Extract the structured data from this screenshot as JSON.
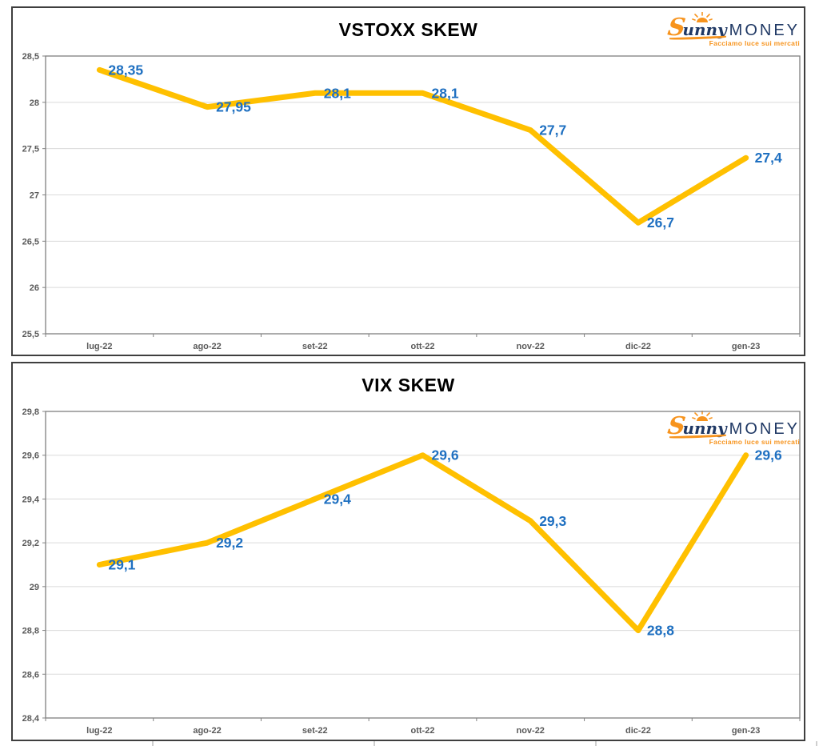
{
  "brand": {
    "script_initial": "S",
    "script_rest": "unny",
    "caps": "MONEY",
    "tagline": "Facciamo luce sui mercati",
    "orange": "#F7941E",
    "navy": "#1F3864"
  },
  "chart_data": [
    {
      "type": "line",
      "title": "VSTOXX SKEW",
      "categories": [
        "lug-22",
        "ago-22",
        "set-22",
        "ott-22",
        "nov-22",
        "dic-22",
        "gen-23"
      ],
      "values": [
        28.35,
        27.95,
        28.1,
        28.1,
        27.7,
        26.7,
        27.4
      ],
      "point_labels": [
        "28,35",
        "27,95",
        "28,1",
        "28,1",
        "27,7",
        "26,7",
        "27,4"
      ],
      "ylim": [
        25.5,
        28.5
      ],
      "ystep": 0.5,
      "ytick_labels": [
        "28,5",
        "28",
        "27,5",
        "27",
        "26,5",
        "26",
        "25,5"
      ],
      "xlabel": "",
      "ylabel": "",
      "grid": true,
      "legend": "none",
      "line_color": "#FFC000",
      "label_color": "#1F70C1",
      "grid_color": "#DADADA",
      "axis_color": "#808080"
    },
    {
      "type": "line",
      "title": "VIX SKEW",
      "categories": [
        "lug-22",
        "ago-22",
        "set-22",
        "ott-22",
        "nov-22",
        "dic-22",
        "gen-23"
      ],
      "values": [
        29.1,
        29.2,
        29.4,
        29.6,
        29.3,
        28.8,
        29.6
      ],
      "point_labels": [
        "29,1",
        "29,2",
        "29,4",
        "29,6",
        "29,3",
        "28,8",
        "29,6"
      ],
      "ylim": [
        28.4,
        29.8
      ],
      "ystep": 0.2,
      "ytick_labels": [
        "29,8",
        "29,6",
        "29,4",
        "29,2",
        "29",
        "28,8",
        "28,6",
        "28,4"
      ],
      "xlabel": "",
      "ylabel": "",
      "grid": true,
      "legend": "none",
      "line_color": "#FFC000",
      "label_color": "#1F70C1",
      "grid_color": "#DADADA",
      "axis_color": "#808080"
    }
  ]
}
